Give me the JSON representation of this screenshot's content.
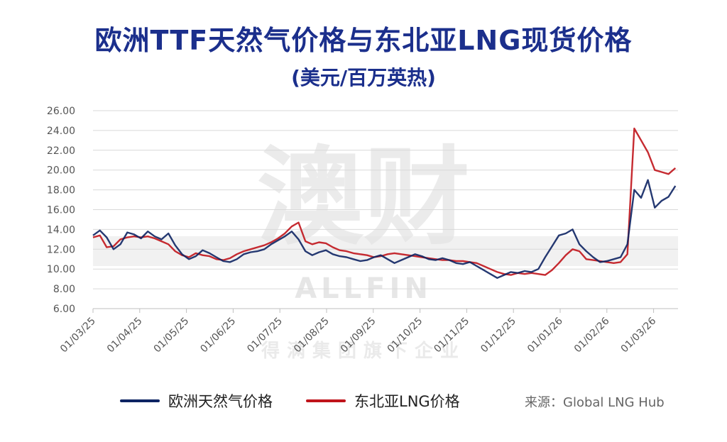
{
  "chart_data": {
    "type": "line",
    "title": "欧洲TTF天然气价格与东北亚LNG现货价格",
    "subtitle": "(美元/百万英热)",
    "ylim": [
      6,
      26
    ],
    "y_ticks": [
      "6.00",
      "8.00",
      "10.00",
      "12.00",
      "14.00",
      "16.00",
      "18.00",
      "20.00",
      "22.00",
      "24.00",
      "26.00"
    ],
    "x_ticks": [
      "01/03/25",
      "01/04/25",
      "01/05/25",
      "01/06/25",
      "01/07/25",
      "01/08/25",
      "01/09/25",
      "01/10/25",
      "01/11/25",
      "01/12/25",
      "01/01/26",
      "01/02/26",
      "01/03/26"
    ],
    "grid": true,
    "legend_position": "bottom",
    "source": "来源：Global LNG Hub",
    "watermark": "澳财 ALLFIN 得满集团旗下企业",
    "series": [
      {
        "name": "欧洲天然气价格",
        "color": "#0d2463",
        "points": [
          [
            0,
            13.4
          ],
          [
            1,
            13.9
          ],
          [
            2,
            13.2
          ],
          [
            3,
            12.0
          ],
          [
            4,
            12.5
          ],
          [
            5,
            13.7
          ],
          [
            6,
            13.5
          ],
          [
            7,
            13.1
          ],
          [
            8,
            13.8
          ],
          [
            9,
            13.3
          ],
          [
            10,
            13.0
          ],
          [
            11,
            13.6
          ],
          [
            12,
            12.4
          ],
          [
            13,
            11.5
          ],
          [
            14,
            11.0
          ],
          [
            15,
            11.3
          ],
          [
            16,
            11.9
          ],
          [
            17,
            11.6
          ],
          [
            18,
            11.2
          ],
          [
            19,
            10.8
          ],
          [
            20,
            10.7
          ],
          [
            21,
            11.0
          ],
          [
            22,
            11.5
          ],
          [
            23,
            11.7
          ],
          [
            24,
            11.8
          ],
          [
            25,
            12.0
          ],
          [
            26,
            12.5
          ],
          [
            27,
            12.9
          ],
          [
            28,
            13.3
          ],
          [
            29,
            13.8
          ],
          [
            30,
            13.0
          ],
          [
            31,
            11.8
          ],
          [
            32,
            11.4
          ],
          [
            33,
            11.7
          ],
          [
            34,
            11.9
          ],
          [
            35,
            11.5
          ],
          [
            36,
            11.3
          ],
          [
            37,
            11.2
          ],
          [
            38,
            11.0
          ],
          [
            39,
            10.8
          ],
          [
            40,
            10.9
          ],
          [
            41,
            11.2
          ],
          [
            42,
            11.4
          ],
          [
            43,
            11.0
          ],
          [
            44,
            10.6
          ],
          [
            45,
            10.9
          ],
          [
            46,
            11.2
          ],
          [
            47,
            11.5
          ],
          [
            48,
            11.3
          ],
          [
            49,
            11.0
          ],
          [
            50,
            10.9
          ],
          [
            51,
            11.1
          ],
          [
            52,
            10.9
          ],
          [
            53,
            10.6
          ],
          [
            54,
            10.5
          ],
          [
            55,
            10.7
          ],
          [
            56,
            10.3
          ],
          [
            57,
            9.9
          ],
          [
            58,
            9.5
          ],
          [
            59,
            9.1
          ],
          [
            60,
            9.4
          ],
          [
            61,
            9.7
          ],
          [
            62,
            9.6
          ],
          [
            63,
            9.8
          ],
          [
            64,
            9.7
          ],
          [
            65,
            10.0
          ],
          [
            66,
            11.2
          ],
          [
            67,
            12.3
          ],
          [
            68,
            13.4
          ],
          [
            69,
            13.6
          ],
          [
            70,
            14.0
          ],
          [
            71,
            12.5
          ],
          [
            72,
            11.8
          ],
          [
            73,
            11.2
          ],
          [
            74,
            10.7
          ],
          [
            75,
            10.8
          ],
          [
            76,
            11.0
          ],
          [
            77,
            11.2
          ],
          [
            78,
            12.5
          ],
          [
            79,
            18.0
          ],
          [
            80,
            17.2
          ],
          [
            81,
            19.0
          ],
          [
            82,
            16.2
          ],
          [
            83,
            16.9
          ],
          [
            84,
            17.3
          ],
          [
            85,
            18.4
          ]
        ]
      },
      {
        "name": "东北亚LNG价格",
        "color": "#c0141b",
        "points": [
          [
            0,
            13.2
          ],
          [
            1,
            13.4
          ],
          [
            2,
            12.2
          ],
          [
            3,
            12.3
          ],
          [
            4,
            13.0
          ],
          [
            5,
            13.2
          ],
          [
            6,
            13.3
          ],
          [
            7,
            13.2
          ],
          [
            8,
            13.3
          ],
          [
            9,
            13.1
          ],
          [
            10,
            12.8
          ],
          [
            11,
            12.5
          ],
          [
            12,
            11.8
          ],
          [
            13,
            11.4
          ],
          [
            14,
            11.2
          ],
          [
            15,
            11.6
          ],
          [
            16,
            11.4
          ],
          [
            17,
            11.3
          ],
          [
            18,
            11.0
          ],
          [
            19,
            10.9
          ],
          [
            20,
            11.1
          ],
          [
            21,
            11.5
          ],
          [
            22,
            11.8
          ],
          [
            23,
            12.0
          ],
          [
            24,
            12.2
          ],
          [
            25,
            12.4
          ],
          [
            26,
            12.7
          ],
          [
            27,
            13.1
          ],
          [
            28,
            13.6
          ],
          [
            29,
            14.3
          ],
          [
            30,
            14.7
          ],
          [
            31,
            12.8
          ],
          [
            32,
            12.5
          ],
          [
            33,
            12.7
          ],
          [
            34,
            12.6
          ],
          [
            35,
            12.2
          ],
          [
            36,
            11.9
          ],
          [
            37,
            11.8
          ],
          [
            38,
            11.6
          ],
          [
            39,
            11.5
          ],
          [
            40,
            11.4
          ],
          [
            41,
            11.2
          ],
          [
            42,
            11.3
          ],
          [
            43,
            11.5
          ],
          [
            44,
            11.6
          ],
          [
            45,
            11.5
          ],
          [
            46,
            11.4
          ],
          [
            47,
            11.3
          ],
          [
            48,
            11.2
          ],
          [
            49,
            11.1
          ],
          [
            50,
            11.0
          ],
          [
            51,
            10.9
          ],
          [
            52,
            10.9
          ],
          [
            53,
            10.8
          ],
          [
            54,
            10.8
          ],
          [
            55,
            10.7
          ],
          [
            56,
            10.6
          ],
          [
            57,
            10.3
          ],
          [
            58,
            10.0
          ],
          [
            59,
            9.7
          ],
          [
            60,
            9.5
          ],
          [
            61,
            9.4
          ],
          [
            62,
            9.6
          ],
          [
            63,
            9.5
          ],
          [
            64,
            9.6
          ],
          [
            65,
            9.5
          ],
          [
            66,
            9.4
          ],
          [
            67,
            9.9
          ],
          [
            68,
            10.6
          ],
          [
            69,
            11.4
          ],
          [
            70,
            12.0
          ],
          [
            71,
            11.8
          ],
          [
            72,
            11.0
          ],
          [
            73,
            10.9
          ],
          [
            74,
            10.8
          ],
          [
            75,
            10.7
          ],
          [
            76,
            10.6
          ],
          [
            77,
            10.7
          ],
          [
            78,
            11.5
          ],
          [
            79,
            24.2
          ],
          [
            80,
            23.0
          ],
          [
            81,
            21.8
          ],
          [
            82,
            20.0
          ],
          [
            83,
            19.8
          ],
          [
            84,
            19.6
          ],
          [
            85,
            20.2
          ]
        ]
      }
    ]
  }
}
